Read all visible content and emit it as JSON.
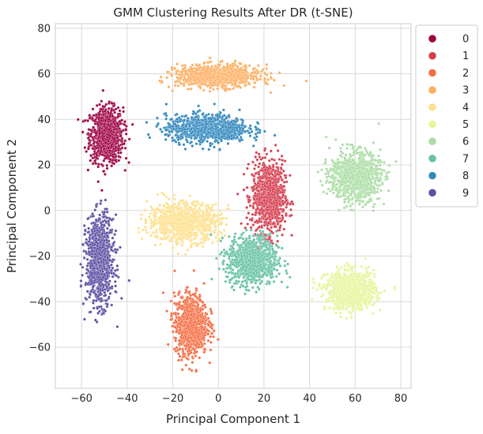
{
  "chart_data": {
    "type": "scatter",
    "title": "GMM Clustering Results After DR (t-SNE)",
    "xlabel": "Principal Component 1",
    "ylabel": "Principal Component 2",
    "xlim": [
      -71.5,
      84.5
    ],
    "ylim": [
      -78,
      82
    ],
    "xticks": [
      -60,
      -40,
      -20,
      0,
      20,
      40,
      60,
      80
    ],
    "yticks": [
      -60,
      -40,
      -20,
      0,
      20,
      40,
      60,
      80
    ],
    "grid": true,
    "legend_position": "outside-right",
    "series": [
      {
        "name": "0",
        "color": "#9e0142",
        "center": [
          -49,
          33
        ],
        "spread": [
          6,
          10
        ]
      },
      {
        "name": "1",
        "color": "#d53e4f",
        "center": [
          22,
          6
        ],
        "spread": [
          6,
          13
        ]
      },
      {
        "name": "2",
        "color": "#f46d43",
        "center": [
          -12,
          -50
        ],
        "spread": [
          6,
          11
        ]
      },
      {
        "name": "3",
        "color": "#fdae61",
        "center": [
          0,
          59
        ],
        "spread": [
          15,
          4
        ]
      },
      {
        "name": "4",
        "color": "#fee08b",
        "center": [
          -15,
          -5
        ],
        "spread": [
          13,
          7
        ]
      },
      {
        "name": "5",
        "color": "#e6f598",
        "center": [
          58,
          -35
        ],
        "spread": [
          9,
          7
        ]
      },
      {
        "name": "6",
        "color": "#abdda4",
        "center": [
          60,
          15
        ],
        "spread": [
          9,
          9
        ]
      },
      {
        "name": "7",
        "color": "#66c2a5",
        "center": [
          15,
          -22
        ],
        "spread": [
          9,
          9
        ]
      },
      {
        "name": "8",
        "color": "#3288bd",
        "center": [
          -5,
          36
        ],
        "spread": [
          15,
          5
        ]
      },
      {
        "name": "9",
        "color": "#5e4fa2",
        "center": [
          -52,
          -22
        ],
        "spread": [
          5,
          16
        ]
      }
    ]
  }
}
